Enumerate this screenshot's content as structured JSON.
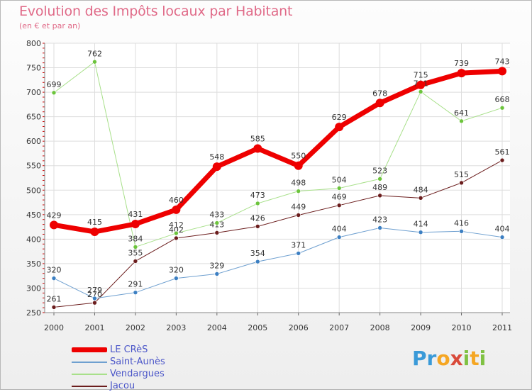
{
  "title": "Evolution des Impôts locaux par Habitant",
  "subtitle": "(en € et par an)",
  "logo": {
    "text": "Proxiti",
    "letters": [
      {
        "ch": "P",
        "color": "#3a9ad8"
      },
      {
        "ch": "r",
        "color": "#3a9ad8"
      },
      {
        "ch": "o",
        "color": "#f5a623"
      },
      {
        "ch": "x",
        "color": "#d94a3a"
      },
      {
        "ch": "i",
        "color": "#7fc142"
      },
      {
        "ch": "t",
        "color": "#f5a623"
      },
      {
        "ch": "i",
        "color": "#7fc142"
      }
    ]
  },
  "chart_data": {
    "type": "line",
    "title": "Evolution des Impôts locaux par Habitant",
    "subtitle": "(en € et par an)",
    "xlabel": "",
    "ylabel": "",
    "x": [
      "2000",
      "2001",
      "2002",
      "2003",
      "2004",
      "2005",
      "2006",
      "2007",
      "2008",
      "2009",
      "2010",
      "2011"
    ],
    "ylim": [
      250,
      800
    ],
    "yticks": [
      250,
      300,
      350,
      400,
      450,
      500,
      550,
      600,
      650,
      700,
      750,
      800
    ],
    "grid": true,
    "legend_position": "bottom-left",
    "series": [
      {
        "name": "Jacou",
        "color": "#6b1d1d",
        "marker": "#6b1d1d",
        "width": 1,
        "values": [
          261,
          270,
          355,
          402,
          413,
          426,
          449,
          469,
          489,
          484,
          515,
          561
        ]
      },
      {
        "name": "Saint-Aunès",
        "color": "#6fa0d0",
        "marker": "#3c7fc2",
        "width": 1,
        "values": [
          320,
          279,
          291,
          320,
          329,
          354,
          371,
          404,
          423,
          414,
          416,
          404
        ]
      },
      {
        "name": "Vendargues",
        "color": "#a8e08a",
        "marker": "#6cc43c",
        "width": 1,
        "values": [
          699,
          762,
          384,
          412,
          433,
          473,
          498,
          504,
          523,
          701,
          641,
          668
        ]
      },
      {
        "name": "LE CRèS",
        "color": "#ee0000",
        "marker": "#ee0000",
        "width": 7,
        "values": [
          429,
          415,
          431,
          460,
          548,
          585,
          550,
          629,
          678,
          715,
          739,
          743
        ]
      }
    ],
    "legend": [
      "LE CRèS",
      "Saint-Aunès",
      "Vendargues",
      "Jacou"
    ]
  }
}
